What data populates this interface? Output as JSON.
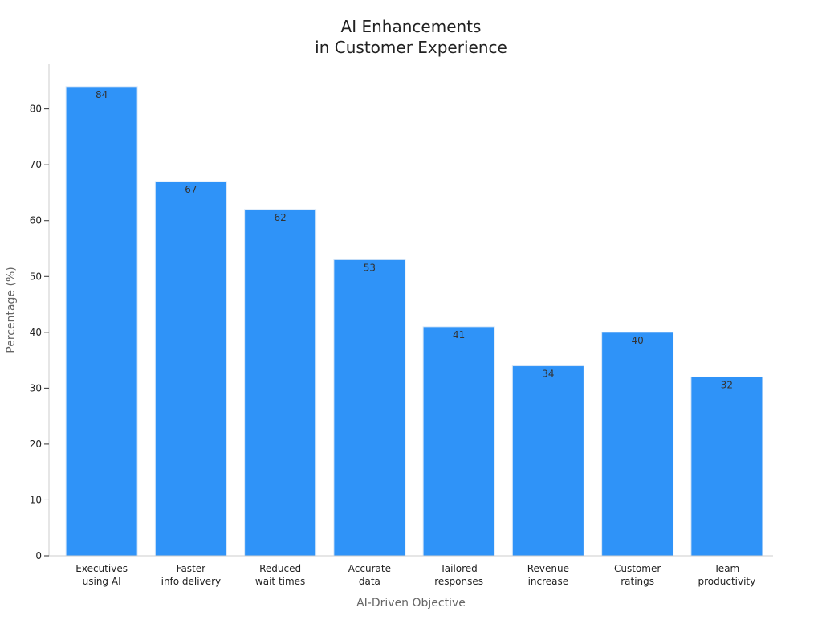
{
  "chart_data": {
    "type": "bar",
    "title": [
      "AI Enhancements",
      "in Customer Experience"
    ],
    "xlabel": "AI-Driven Objective",
    "ylabel": "Percentage (%)",
    "categories": [
      [
        "Executives",
        "using AI"
      ],
      [
        "Faster",
        "info delivery"
      ],
      [
        "Reduced",
        "wait times"
      ],
      [
        "Accurate",
        "data"
      ],
      [
        "Tailored",
        "responses"
      ],
      [
        "Revenue",
        "increase"
      ],
      [
        "Customer",
        "ratings"
      ],
      [
        "Team",
        "productivity"
      ]
    ],
    "values": [
      84,
      67,
      62,
      53,
      41,
      34,
      40,
      32
    ],
    "data_labels": [
      "84",
      "67",
      "62",
      "53",
      "41",
      "34",
      "40",
      "32"
    ],
    "y_ticks": [
      0,
      10,
      20,
      30,
      40,
      50,
      60,
      70,
      80
    ],
    "ylim": [
      0,
      88
    ],
    "grid": false,
    "legend": "none",
    "colors": {
      "bar": "#2f93f8",
      "bar_edge": "#d6e6f7",
      "axis": "#cccccc",
      "tick_text": "#222222",
      "label_text": "#666666",
      "title_text": "#222222",
      "data_label_text": "#333333"
    }
  }
}
